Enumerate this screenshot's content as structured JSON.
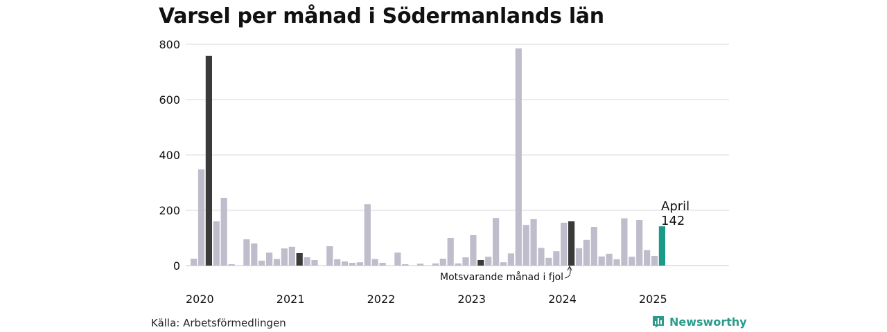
{
  "chart_data": {
    "type": "bar",
    "title": "Varsel per månad i Södermanlands län",
    "ylim": [
      0,
      800
    ],
    "yticks": [
      0,
      200,
      400,
      600,
      800
    ],
    "grid": true,
    "x_labels": [
      "2020",
      "2021",
      "2022",
      "2023",
      "2024",
      "2025"
    ],
    "series": [
      {
        "values": [
          25,
          348,
          758,
          160,
          245,
          5,
          0,
          95,
          80,
          18,
          47,
          24,
          62,
          68,
          45,
          30,
          20,
          0,
          70,
          23,
          15,
          10,
          12,
          222,
          24,
          10,
          0,
          47,
          5,
          0,
          7,
          0,
          8,
          25,
          100,
          8,
          30,
          110,
          20,
          32,
          172,
          12,
          44,
          785,
          147,
          168,
          64,
          28,
          52,
          155,
          160,
          63,
          93,
          140,
          33,
          43,
          23,
          171,
          32,
          165,
          56,
          35,
          142
        ]
      }
    ],
    "annotations": [
      {
        "text": "Motsvarande månad i fjol"
      },
      {
        "text": "April"
      },
      {
        "text": "142"
      }
    ],
    "colors": {
      "default": "#bfbdcb",
      "highlight": "#3a3a3a",
      "current": "#1b9a87"
    }
  },
  "source": "Källa: Arbetsförmedlingen",
  "brand": {
    "name": "Newsworthy",
    "icon": "bar-chart-logo-icon",
    "color": "#2a9c8c"
  }
}
